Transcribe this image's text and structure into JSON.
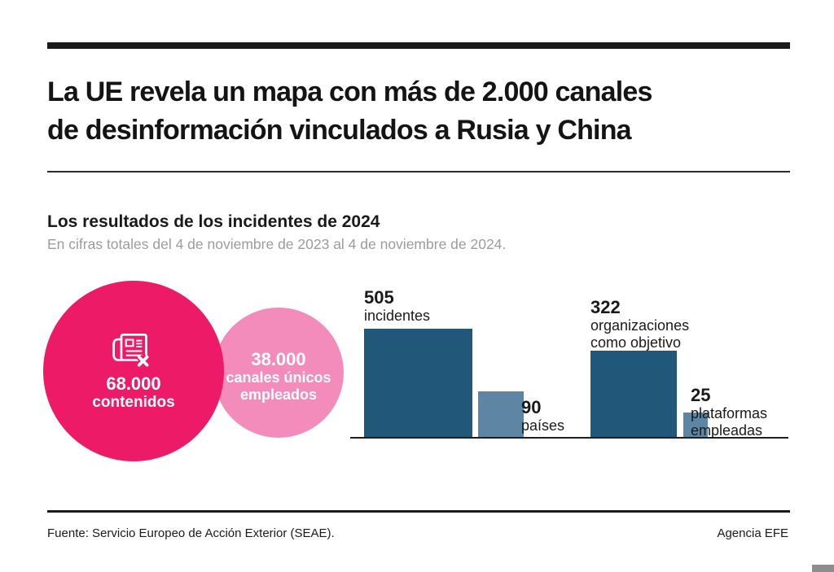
{
  "header": {
    "title_lines": [
      "La UE revela un mapa con más de 2.000 canales",
      "de desinformación vinculados a Rusia y China"
    ]
  },
  "chart_data": {
    "type": "bar",
    "variant": "area-proportional squares and bubbles, no axes, direct labels",
    "title": "Los resultados de los incidentes de 2024",
    "subtitle": "En cifras totales del 4 de noviembre de 2023 al 4 de noviembre de 2024.",
    "bubbles": [
      {
        "value": "68.000",
        "label": "contenidos",
        "color": "#ed1a67",
        "text_color": "#ffffff",
        "icon": "newspaper-x-icon"
      },
      {
        "value": "38.000",
        "label": "canales únicos empleados",
        "color": "#f48cbb",
        "text_color": "#ffffff"
      }
    ],
    "squares": [
      {
        "value": 505,
        "label": "incidentes",
        "color": "#21587a",
        "label_position": "above"
      },
      {
        "value": 90,
        "label": "países",
        "color": "#5e85a3",
        "label_position": "right"
      },
      {
        "value": 322,
        "label": "organizaciones como objetivo",
        "color": "#21587a",
        "label_position": "above"
      },
      {
        "value": 25,
        "label": "plataformas empleadas",
        "color": "#5e85a3",
        "label_position": "right"
      }
    ],
    "legend": "none",
    "grid": "off"
  },
  "footer": {
    "source": "Fuente: Servicio Europeo de Acción Exterior (SEAE).",
    "credit": "Agencia EFE"
  },
  "colors": {
    "magenta": "#ed1a67",
    "pink": "#f48cbb",
    "dark_blue": "#21587a",
    "light_blue": "#5e85a3",
    "rule_black": "#1a1a1a",
    "muted_text": "#9c9c9c",
    "corner_block": "#8d8d8f"
  },
  "icons": {
    "bubble_icon": "newspaper-x-icon"
  }
}
